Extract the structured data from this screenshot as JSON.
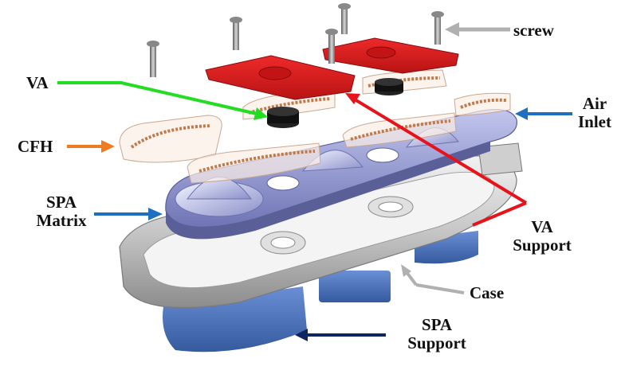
{
  "labels": {
    "screw": "screw",
    "va": "VA",
    "air_line1": "Air",
    "air_line2": "Inlet",
    "cfh": "CFH",
    "spa_matrix_line1": "SPA",
    "spa_matrix_line2": "Matrix",
    "va_support_line1": "VA",
    "va_support_line2": "Support",
    "case": "Case",
    "spa_support_line1": "SPA",
    "spa_support_line2": "Support"
  },
  "colors": {
    "screw_arrow": "#b0b0b0",
    "va_arrow": "#22dd22",
    "air_arrow": "#1f6fc0",
    "cfh_arrow": "#f07a20",
    "spa_matrix_arrow": "#1f6fc0",
    "va_support_arrow": "#e8121b",
    "case_arrow": "#b0b0b0",
    "spa_support_arrow": "#0d2660",
    "va_support_part": "#d81b1b",
    "spa_matrix_part": "#8e94cf",
    "spa_support_part": "#4a72b8",
    "case_part": "#c9c9c9",
    "coil": "#c07a4a"
  }
}
